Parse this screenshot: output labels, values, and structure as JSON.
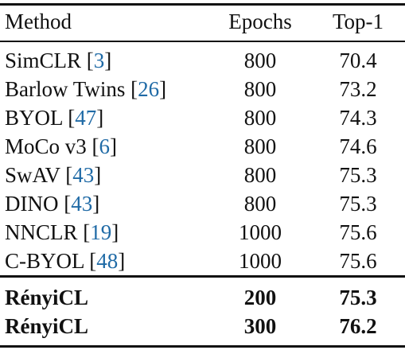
{
  "table": {
    "headers": {
      "method": "Method",
      "epochs": "Epochs",
      "top1": "Top-1"
    },
    "rows": [
      {
        "method": "SimCLR",
        "ref": "3",
        "epochs": "800",
        "top1": "70.4"
      },
      {
        "method": "Barlow Twins",
        "ref": "26",
        "epochs": "800",
        "top1": "73.2"
      },
      {
        "method": "BYOL",
        "ref": "47",
        "epochs": "800",
        "top1": "74.3"
      },
      {
        "method": "MoCo v3",
        "ref": "6",
        "epochs": "800",
        "top1": "74.6"
      },
      {
        "method": "SwAV",
        "ref": "43",
        "epochs": "800",
        "top1": "75.3"
      },
      {
        "method": "DINO",
        "ref": "43",
        "epochs": "800",
        "top1": "75.3"
      },
      {
        "method": "NNCLR",
        "ref": "19",
        "epochs": "1000",
        "top1": "75.6"
      },
      {
        "method": "C-BYOL",
        "ref": "48",
        "epochs": "1000",
        "top1": "75.6"
      }
    ],
    "ours": [
      {
        "method": "RényiCL",
        "epochs": "200",
        "top1": "75.3"
      },
      {
        "method": "RényiCL",
        "epochs": "300",
        "top1": "76.2"
      }
    ]
  }
}
